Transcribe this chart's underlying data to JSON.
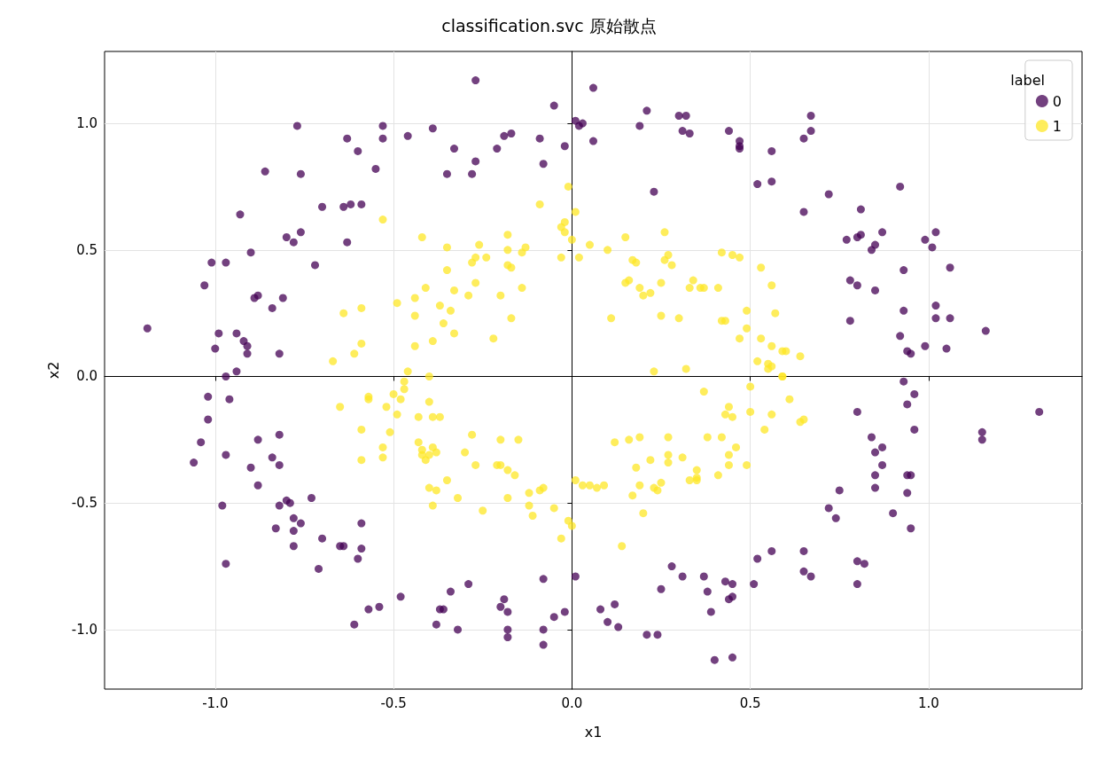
{
  "chart_data": {
    "type": "scatter",
    "title": "classification.svc 原始散点",
    "xlabel": "x1",
    "ylabel": "x2",
    "legend_title": "label",
    "legend": "top right",
    "grid": true,
    "marker": "circle",
    "xlim": [
      -1.31,
      1.43
    ],
    "ylim": [
      -1.235,
      1.284
    ],
    "xticks": [
      {
        "value": -1,
        "label": "-1.0"
      },
      {
        "value": -0.5,
        "label": "-0.5"
      },
      {
        "value": 0,
        "label": "0.0"
      },
      {
        "value": 0.5,
        "label": "0.5"
      },
      {
        "value": 1,
        "label": "1.0"
      }
    ],
    "yticks": [
      {
        "value": -1,
        "label": "-1.0"
      },
      {
        "value": -0.5,
        "label": "-0.5"
      },
      {
        "value": 0,
        "label": "0.0"
      },
      {
        "value": 0.5,
        "label": "0.5"
      },
      {
        "value": 1,
        "label": "1.0"
      }
    ],
    "series": [
      {
        "name": "0",
        "color": "#440154",
        "x": [
          -1.19,
          -1.03,
          -1.01,
          -0.97,
          -0.99,
          -1.0,
          -1.02,
          -1.02,
          -1.04,
          -1.06,
          -0.97,
          -0.98,
          -0.97,
          -0.97,
          -0.96,
          -0.94,
          -0.94,
          -0.92,
          -0.91,
          -0.91,
          -0.93,
          -0.9,
          -0.88,
          -0.89,
          -0.84,
          -0.81,
          -0.82,
          -0.86,
          -0.9,
          -0.88,
          -0.88,
          -0.84,
          -0.82,
          -0.82,
          -0.83,
          -0.82,
          -0.8,
          -0.79,
          -0.78,
          -0.78,
          -0.78,
          -0.76,
          -0.73,
          -0.71,
          -0.7,
          -0.8,
          -0.78,
          -0.76,
          -0.76,
          -0.77,
          -0.72,
          -0.7,
          -0.63,
          -0.64,
          -0.63,
          -0.62,
          -0.59,
          -0.6,
          -0.55,
          -0.53,
          -0.53,
          -0.46,
          -0.39,
          -0.35,
          -0.33,
          -0.28,
          -0.27,
          -0.27,
          -0.21,
          -0.19,
          -0.17,
          -0.09,
          -0.08,
          -0.05,
          -0.02,
          0.01,
          0.02,
          0.03,
          0.06,
          0.06,
          0.19,
          0.21,
          0.23,
          0.3,
          0.32,
          0.31,
          0.33,
          0.44,
          0.47,
          0.47,
          0.47,
          0.52,
          0.56,
          0.56,
          0.65,
          0.67,
          0.67,
          0.65,
          0.72,
          0.77,
          0.8,
          0.81,
          0.81,
          0.8,
          0.78,
          0.78,
          0.87,
          0.85,
          0.84,
          0.92,
          0.99,
          1.01,
          1.02,
          1.06,
          0.93,
          0.85,
          0.93,
          1.02,
          1.02,
          1.06,
          1.16,
          0.99,
          1.05,
          0.92,
          0.94,
          0.95,
          0.93,
          0.96,
          0.94,
          0.96,
          0.8,
          0.84,
          0.87,
          0.85,
          0.87,
          0.85,
          0.85,
          0.94,
          0.95,
          1.15,
          1.15,
          1.31,
          0.94,
          0.9,
          0.95,
          0.75,
          0.74,
          0.72,
          0.8,
          0.82,
          0.8,
          0.65,
          0.65,
          0.67,
          0.56,
          0.52,
          0.51,
          0.45,
          0.45,
          0.43,
          0.44,
          0.38,
          0.37,
          0.39,
          0.4,
          0.45,
          0.31,
          0.28,
          0.25,
          0.21,
          0.24,
          0.13,
          0.12,
          0.1,
          0.08,
          0.01,
          -0.02,
          -0.05,
          -0.08,
          -0.08,
          -0.08,
          -0.19,
          -0.2,
          -0.18,
          -0.18,
          -0.18,
          -0.29,
          -0.34,
          -0.32,
          -0.37,
          -0.38,
          -0.36,
          -0.48,
          -0.54,
          -0.57,
          -0.61,
          -0.6,
          -0.59,
          -0.64,
          -0.65,
          -0.59
        ],
        "values": [
          0.19,
          0.36,
          0.45,
          0.45,
          0.17,
          0.11,
          -0.08,
          -0.17,
          -0.26,
          -0.34,
          -0.31,
          -0.51,
          -0.74,
          0.0,
          -0.09,
          0.17,
          0.02,
          0.14,
          0.12,
          0.09,
          0.64,
          0.49,
          0.32,
          0.31,
          0.27,
          0.31,
          0.09,
          0.81,
          -0.36,
          -0.25,
          -0.43,
          -0.32,
          -0.23,
          -0.35,
          -0.6,
          -0.51,
          -0.49,
          -0.5,
          -0.61,
          -0.56,
          -0.67,
          -0.58,
          -0.48,
          -0.76,
          -0.64,
          0.55,
          0.53,
          0.57,
          0.8,
          0.99,
          0.44,
          0.67,
          0.94,
          0.67,
          0.53,
          0.68,
          0.68,
          0.89,
          0.82,
          0.99,
          0.94,
          0.95,
          0.98,
          0.8,
          0.9,
          0.8,
          0.85,
          1.17,
          0.9,
          0.95,
          0.96,
          0.94,
          0.84,
          1.07,
          0.91,
          1.01,
          0.99,
          1.0,
          1.14,
          0.93,
          0.99,
          1.05,
          0.73,
          1.03,
          1.03,
          0.97,
          0.96,
          0.97,
          0.93,
          0.91,
          0.9,
          0.76,
          0.77,
          0.89,
          0.94,
          0.97,
          1.03,
          0.65,
          0.72,
          0.54,
          0.55,
          0.56,
          0.66,
          0.36,
          0.38,
          0.22,
          0.57,
          0.52,
          0.5,
          0.75,
          0.54,
          0.51,
          0.57,
          0.43,
          0.42,
          0.34,
          0.26,
          0.28,
          0.23,
          0.23,
          0.18,
          0.12,
          0.11,
          0.16,
          0.1,
          0.09,
          -0.02,
          -0.07,
          -0.11,
          -0.21,
          -0.14,
          -0.24,
          -0.28,
          -0.3,
          -0.35,
          -0.39,
          -0.44,
          -0.39,
          -0.39,
          -0.22,
          -0.25,
          -0.14,
          -0.46,
          -0.54,
          -0.6,
          -0.45,
          -0.56,
          -0.52,
          -0.73,
          -0.74,
          -0.82,
          -0.69,
          -0.77,
          -0.79,
          -0.69,
          -0.72,
          -0.82,
          -0.82,
          -0.87,
          -0.81,
          -0.88,
          -0.85,
          -0.79,
          -0.93,
          -1.12,
          -1.11,
          -0.79,
          -0.75,
          -0.84,
          -1.02,
          -1.02,
          -0.99,
          -0.9,
          -0.97,
          -0.92,
          -0.79,
          -0.93,
          -0.95,
          -0.8,
          -1.0,
          -1.06,
          -0.88,
          -0.91,
          -0.93,
          -1.0,
          -1.03,
          -0.82,
          -0.85,
          -1.0,
          -0.92,
          -0.98,
          -0.92,
          -0.87,
          -0.91,
          -0.92,
          -0.98,
          -0.72,
          -0.68,
          -0.67,
          -0.67,
          -0.58
        ]
      },
      {
        "name": "1",
        "color": "#fde725",
        "x": [
          -0.53,
          -0.64,
          -0.59,
          -0.59,
          -0.61,
          -0.67,
          -0.65,
          -0.59,
          -0.59,
          -0.53,
          -0.53,
          -0.57,
          -0.57,
          -0.52,
          -0.5,
          -0.49,
          -0.51,
          -0.48,
          -0.47,
          -0.46,
          -0.47,
          -0.49,
          -0.44,
          -0.44,
          -0.44,
          -0.42,
          -0.41,
          -0.43,
          -0.43,
          -0.42,
          -0.41,
          -0.4,
          -0.38,
          -0.39,
          -0.42,
          -0.4,
          -0.38,
          -0.39,
          -0.4,
          -0.4,
          -0.39,
          -0.37,
          -0.39,
          -0.37,
          -0.36,
          -0.35,
          -0.35,
          -0.34,
          -0.33,
          -0.33,
          -0.35,
          -0.32,
          -0.3,
          -0.29,
          -0.27,
          -0.28,
          -0.27,
          -0.26,
          -0.24,
          -0.27,
          -0.25,
          -0.28,
          -0.22,
          -0.2,
          -0.21,
          -0.2,
          -0.2,
          -0.18,
          -0.18,
          -0.18,
          -0.17,
          -0.17,
          -0.18,
          -0.16,
          -0.18,
          -0.15,
          -0.14,
          -0.14,
          -0.13,
          -0.12,
          -0.12,
          -0.11,
          -0.09,
          -0.08,
          -0.09,
          -0.05,
          -0.03,
          -0.03,
          -0.02,
          -0.02,
          -0.01,
          -0.01,
          0.0,
          -0.03,
          0.0,
          0.01,
          0.02,
          0.01,
          0.03,
          0.05,
          0.07,
          0.09,
          0.1,
          0.05,
          0.11,
          0.12,
          0.14,
          0.15,
          0.15,
          0.16,
          0.16,
          0.17,
          0.18,
          0.19,
          0.17,
          0.18,
          0.19,
          0.19,
          0.2,
          0.22,
          0.2,
          0.22,
          0.23,
          0.23,
          0.24,
          0.25,
          0.25,
          0.25,
          0.26,
          0.27,
          0.26,
          0.27,
          0.27,
          0.27,
          0.28,
          0.3,
          0.31,
          0.32,
          0.33,
          0.33,
          0.34,
          0.35,
          0.35,
          0.36,
          0.37,
          0.35,
          0.37,
          0.38,
          0.41,
          0.42,
          0.41,
          0.42,
          0.42,
          0.43,
          0.43,
          0.44,
          0.44,
          0.44,
          0.45,
          0.45,
          0.47,
          0.46,
          0.47,
          0.49,
          0.49,
          0.49,
          0.5,
          0.5,
          0.52,
          0.53,
          0.53,
          0.54,
          0.55,
          0.55,
          0.56,
          0.56,
          0.56,
          0.56,
          0.57,
          0.59,
          0.6,
          0.61,
          0.64,
          0.64,
          0.65,
          0.59,
          0.59
        ],
        "values": [
          0.62,
          0.25,
          0.27,
          0.13,
          0.09,
          0.06,
          -0.12,
          -0.21,
          -0.33,
          -0.28,
          -0.32,
          -0.08,
          -0.09,
          -0.12,
          -0.07,
          -0.15,
          -0.22,
          -0.09,
          -0.02,
          0.02,
          -0.05,
          0.29,
          0.12,
          0.24,
          0.31,
          0.55,
          0.35,
          -0.16,
          -0.26,
          -0.31,
          -0.33,
          -0.31,
          -0.3,
          -0.28,
          -0.29,
          -0.44,
          -0.45,
          -0.51,
          0.0,
          -0.1,
          -0.16,
          -0.16,
          0.14,
          0.28,
          0.21,
          0.42,
          0.51,
          0.26,
          0.34,
          0.17,
          -0.41,
          -0.48,
          -0.3,
          0.32,
          0.37,
          0.45,
          0.47,
          0.52,
          0.47,
          -0.35,
          -0.53,
          -0.23,
          0.15,
          0.32,
          -0.35,
          -0.35,
          -0.25,
          0.5,
          0.56,
          0.44,
          0.43,
          0.23,
          -0.37,
          -0.39,
          -0.48,
          -0.25,
          0.35,
          0.49,
          0.51,
          -0.46,
          -0.51,
          -0.55,
          -0.45,
          -0.44,
          0.68,
          -0.52,
          0.47,
          0.59,
          0.61,
          0.57,
          0.75,
          -0.57,
          -0.59,
          -0.64,
          0.54,
          0.65,
          0.47,
          -0.41,
          -0.43,
          -0.43,
          -0.44,
          -0.43,
          0.5,
          0.52,
          0.23,
          -0.26,
          -0.67,
          0.55,
          0.37,
          0.38,
          -0.25,
          0.46,
          0.45,
          0.35,
          -0.47,
          -0.36,
          -0.43,
          -0.24,
          -0.54,
          -0.33,
          0.32,
          0.33,
          -0.44,
          0.02,
          -0.45,
          -0.42,
          0.24,
          0.37,
          0.46,
          0.48,
          0.57,
          -0.24,
          -0.34,
          -0.31,
          0.44,
          0.23,
          -0.32,
          0.03,
          -0.41,
          0.35,
          0.38,
          -0.4,
          -0.41,
          0.35,
          0.35,
          -0.37,
          -0.06,
          -0.24,
          0.35,
          0.49,
          -0.39,
          -0.24,
          0.22,
          0.22,
          -0.15,
          -0.12,
          -0.31,
          -0.35,
          -0.16,
          0.48,
          0.47,
          -0.28,
          0.15,
          0.26,
          0.19,
          -0.35,
          -0.04,
          -0.14,
          0.06,
          0.43,
          0.15,
          -0.21,
          0.05,
          0.03,
          0.04,
          -0.15,
          0.12,
          0.36,
          0.25,
          0.0,
          0.1,
          -0.09,
          0.08,
          -0.18,
          -0.17,
          0.1,
          0.0
        ]
      }
    ]
  }
}
